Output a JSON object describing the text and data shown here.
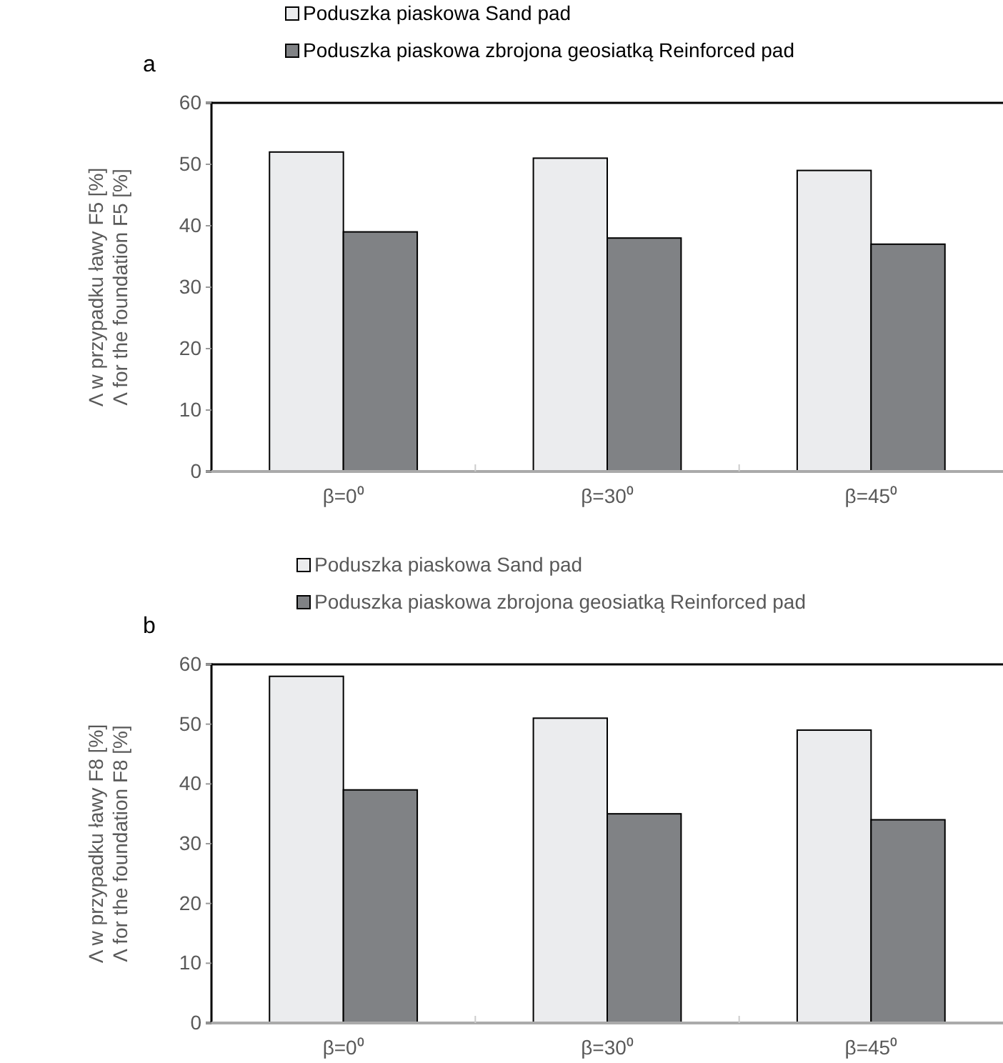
{
  "chart_data": [
    {
      "type": "bar",
      "title": "a",
      "categories": [
        "β=0⁰",
        "β=30⁰",
        "β=45⁰"
      ],
      "ylabel": "Λ w przypadku ławy F5 [%]\nΛ for the foundation F5 [%]",
      "ylim": [
        0,
        60
      ],
      "yticks": [
        0,
        10,
        20,
        30,
        40,
        50,
        60
      ],
      "legend": "top",
      "grid": false,
      "series": [
        {
          "name": "Poduszka piaskowa  Sand pad",
          "color": "#ebecee",
          "values": [
            52,
            51,
            49
          ]
        },
        {
          "name": "Poduszka piaskowa zbrojona geosiatką  Reinforced pad",
          "color": "#808285",
          "values": [
            39,
            38,
            37
          ]
        }
      ]
    },
    {
      "type": "bar",
      "title": "b",
      "categories": [
        "β=0⁰",
        "β=30⁰",
        "β=45⁰"
      ],
      "ylabel": "Λ w przypadku ławy F8 [%]\nΛ for the foundation  F8 [%]",
      "ylim": [
        0,
        60
      ],
      "yticks": [
        0,
        10,
        20,
        30,
        40,
        50,
        60
      ],
      "legend": "top",
      "grid": false,
      "series": [
        {
          "name": "Poduszka piaskowa  Sand pad",
          "color": "#ebecee",
          "values": [
            58,
            51,
            49
          ]
        },
        {
          "name": "Poduszka piaskowa zbrojona geosiatką  Reinforced pad",
          "color": "#808285",
          "values": [
            39,
            35,
            34
          ]
        }
      ]
    }
  ]
}
